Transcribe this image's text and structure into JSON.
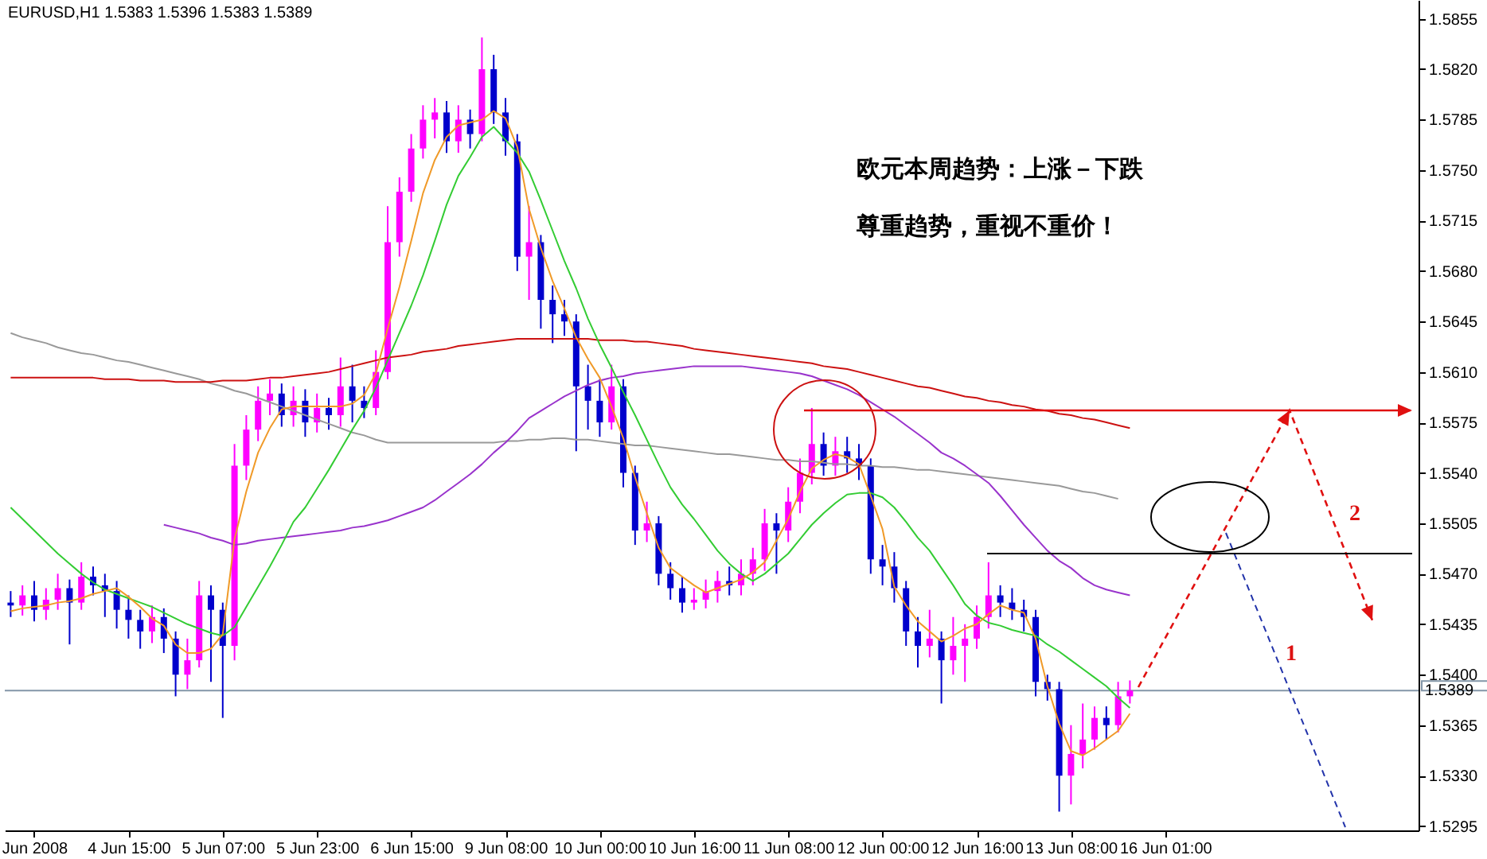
{
  "chart_data": {
    "type": "candlestick",
    "title": "EURUSD,H1  1.5383 1.5396 1.5383 1.5389",
    "categories": [
      null,
      null,
      "Jun 2008",
      null,
      null,
      null,
      null,
      null,
      null,
      null,
      "4 Jun 15:00",
      null,
      null,
      null,
      null,
      null,
      null,
      null,
      "5 Jun 07:00",
      null,
      null,
      null,
      null,
      null,
      null,
      null,
      "5 Jun 23:00",
      null,
      null,
      null,
      null,
      null,
      null,
      null,
      "6 Jun 15:00",
      null,
      null,
      null,
      null,
      null,
      null,
      null,
      "9 Jun 08:00",
      null,
      null,
      null,
      null,
      null,
      null,
      null,
      "10 Jun 00:00",
      null,
      null,
      null,
      null,
      null,
      null,
      null,
      "10 Jun 16:00",
      null,
      null,
      null,
      null,
      null,
      null,
      null,
      "11 Jun 08:00",
      null,
      null,
      null,
      null,
      null,
      null,
      null,
      "12 Jun 00:00",
      null,
      null,
      null,
      null,
      null,
      null,
      null,
      "12 Jun 16:00",
      null,
      null,
      null,
      null,
      null,
      null,
      null,
      "13 Jun 08:00",
      null,
      null,
      null,
      null,
      null,
      null,
      null,
      "16 Jun 01:00",
      null,
      null,
      null,
      null,
      null,
      null,
      null,
      null,
      null,
      null,
      null,
      null,
      null,
      null,
      null,
      null,
      null,
      null,
      null,
      null,
      null
    ],
    "ylim": [
      1.5292,
      1.5868
    ],
    "yticks": [
      1.5855,
      {
        "value": 1.582,
        "label": "1.5820"
      },
      1.5785,
      {
        "value": 1.575,
        "label": "1.5750"
      },
      1.5715,
      {
        "value": 1.568,
        "label": "1.5680"
      },
      1.5645,
      {
        "value": 1.561,
        "label": "1.5610"
      },
      1.5575,
      {
        "value": 1.554,
        "label": "1.5540"
      },
      1.5505,
      {
        "value": 1.547,
        "label": "1.5470"
      },
      1.5435,
      {
        "value": 1.54,
        "label": "1.5400"
      },
      1.5365,
      {
        "value": 1.533,
        "label": "1.5330"
      },
      1.5295
    ],
    "series": [
      {
        "type": "line",
        "color": "#999999",
        "values": [
          1.5637,
          1.5634,
          1.5632,
          1.563,
          1.5627,
          1.5625,
          1.5623,
          1.5622,
          1.562,
          1.5618,
          1.5617,
          1.5615,
          1.5613,
          1.5611,
          1.5609,
          1.5607,
          1.5605,
          1.5602,
          1.56,
          1.5597,
          1.5595,
          1.5592,
          1.5589,
          1.5586,
          1.5583,
          1.558,
          1.5577,
          1.5574,
          1.5571,
          1.5568,
          1.5566,
          1.5563,
          1.5561,
          1.5561,
          1.5561,
          1.5561,
          1.5561,
          1.5561,
          1.5561,
          1.5561,
          1.5561,
          1.5561,
          1.5562,
          1.5562,
          1.5563,
          1.5563,
          1.5564,
          1.5564,
          1.5563,
          1.5563,
          1.5562,
          1.5561,
          1.556,
          1.5559,
          1.5559,
          1.5558,
          1.5557,
          1.5556,
          1.5555,
          1.5554,
          1.5553,
          1.5553,
          1.5552,
          1.5551,
          1.555,
          1.5549,
          1.5549,
          1.5548,
          1.5548,
          1.5547,
          1.5546,
          1.5546,
          1.5545,
          1.5545,
          1.5544,
          1.5544,
          1.5543,
          1.5542,
          1.5542,
          1.5541,
          1.554,
          1.5539,
          1.5538,
          1.5537,
          1.5536,
          1.5535,
          1.5534,
          1.5533,
          1.5532,
          1.5531,
          1.5529,
          1.5527,
          1.5526,
          1.5524,
          1.5522,
          null,
          null,
          null,
          null,
          null,
          null,
          null,
          null,
          null,
          null,
          null,
          null,
          null,
          null,
          null,
          null,
          null,
          null,
          null,
          null,
          null,
          null,
          null,
          null,
          null
        ]
      },
      {
        "type": "line",
        "color": "#cc1111",
        "values": [
          1.5606,
          1.5606,
          1.5606,
          1.5606,
          1.5606,
          1.5606,
          1.5606,
          1.5606,
          1.5605,
          1.5605,
          1.5605,
          1.5604,
          1.5604,
          1.5604,
          1.5603,
          1.5603,
          1.5603,
          1.5603,
          1.5604,
          1.5604,
          1.5604,
          1.5605,
          1.5606,
          1.5606,
          1.5607,
          1.5608,
          1.5609,
          1.561,
          1.5612,
          1.5614,
          1.5616,
          1.5618,
          1.562,
          1.5621,
          1.5622,
          1.5624,
          1.5625,
          1.5626,
          1.5628,
          1.5629,
          1.563,
          1.5631,
          1.5632,
          1.5633,
          1.5633,
          1.5633,
          1.5633,
          1.5633,
          1.5633,
          1.5633,
          1.5632,
          1.5632,
          1.5632,
          1.5631,
          1.5631,
          1.563,
          1.5629,
          1.5628,
          1.5626,
          1.5625,
          1.5624,
          1.5623,
          1.5622,
          1.5621,
          1.562,
          1.5619,
          1.5618,
          1.5617,
          1.5616,
          1.5614,
          1.5613,
          1.5612,
          1.561,
          1.5608,
          1.5606,
          1.5604,
          1.5602,
          1.56,
          1.5599,
          1.5597,
          1.5595,
          1.5593,
          1.5592,
          1.559,
          1.5589,
          1.5587,
          1.5586,
          1.5584,
          1.5583,
          1.5581,
          1.558,
          1.5578,
          1.5577,
          1.5575,
          1.5573,
          1.5571,
          null,
          null,
          null,
          null,
          null,
          null,
          null,
          null,
          null,
          null,
          null,
          null,
          null,
          null,
          null,
          null,
          null,
          null,
          null,
          null,
          null,
          null,
          null,
          null
        ]
      },
      {
        "type": "line",
        "color": "#9933cc",
        "values": [
          null,
          null,
          null,
          null,
          null,
          null,
          null,
          null,
          null,
          null,
          null,
          null,
          null,
          1.5504,
          1.5502,
          1.55,
          1.5498,
          1.5495,
          1.5493,
          1.549,
          1.5491,
          1.5493,
          1.5494,
          1.5495,
          1.5496,
          1.5497,
          1.5498,
          1.5499,
          1.55,
          1.5502,
          1.5503,
          1.5505,
          1.5507,
          1.551,
          1.5513,
          1.5516,
          1.5521,
          1.5527,
          1.5533,
          1.5539,
          1.5546,
          1.5554,
          1.5561,
          1.5569,
          1.5578,
          1.5583,
          1.5588,
          1.5593,
          1.5597,
          1.5601,
          1.5604,
          1.5606,
          1.5607,
          1.5609,
          1.561,
          1.5611,
          1.5612,
          1.5613,
          1.5614,
          1.5614,
          1.5614,
          1.5614,
          1.5614,
          1.5613,
          1.5612,
          1.5611,
          1.561,
          1.5609,
          1.5607,
          1.5604,
          1.5601,
          1.5598,
          1.5594,
          1.5589,
          1.5584,
          1.5579,
          1.5573,
          1.5567,
          1.5561,
          1.5554,
          1.555,
          1.5545,
          1.5539,
          1.5533,
          1.5524,
          1.5514,
          1.5504,
          1.5495,
          1.5486,
          1.5479,
          1.5474,
          1.5467,
          1.5462,
          1.5459,
          1.5457,
          1.5455,
          null,
          null,
          null,
          null,
          null,
          null,
          null,
          null,
          null,
          null,
          null,
          null,
          null,
          null,
          null,
          null,
          null,
          null,
          null,
          null,
          null,
          null,
          null,
          null
        ]
      },
      {
        "type": "line",
        "color": "#33cc33",
        "values": [
          1.5516,
          1.5508,
          1.55,
          1.5492,
          1.5484,
          1.5477,
          1.547,
          1.5464,
          1.5459,
          1.5456,
          1.5453,
          1.545,
          1.5447,
          1.5443,
          1.5439,
          1.5435,
          1.5432,
          1.5429,
          1.5427,
          1.5433,
          1.5447,
          1.5461,
          1.5475,
          1.549,
          1.5506,
          1.5516,
          1.5529,
          1.5542,
          1.5556,
          1.557,
          1.5583,
          1.5599,
          1.5618,
          1.5637,
          1.5656,
          1.5677,
          1.5701,
          1.5726,
          1.5746,
          1.5759,
          1.5773,
          1.578,
          1.5771,
          1.5762,
          1.5749,
          1.5729,
          1.5708,
          1.5687,
          1.5668,
          1.5647,
          1.5629,
          1.5613,
          1.5596,
          1.558,
          1.5563,
          1.5546,
          1.553,
          1.5518,
          1.5508,
          1.5497,
          1.5486,
          1.5477,
          1.547,
          1.5465,
          1.547,
          1.5477,
          1.5484,
          1.5494,
          1.5504,
          1.5512,
          1.5519,
          1.5525,
          1.5526,
          1.5526,
          1.5523,
          1.5516,
          1.5506,
          1.5495,
          1.5486,
          1.5474,
          1.5462,
          1.5449,
          1.5441,
          1.5436,
          1.5434,
          1.5431,
          1.5429,
          1.5427,
          1.5421,
          1.5416,
          1.541,
          1.5404,
          1.5398,
          1.5392,
          1.5384,
          1.5377,
          null,
          null,
          null,
          null,
          null,
          null,
          null,
          null,
          null,
          null,
          null,
          null,
          null,
          null,
          null,
          null,
          null,
          null,
          null,
          null,
          null,
          null,
          null,
          null
        ]
      },
      {
        "type": "line",
        "color": "#f09a28",
        "values": [
          1.5444,
          1.5446,
          1.5447,
          1.5448,
          1.545,
          1.5451,
          1.5453,
          1.5456,
          1.5458,
          1.546,
          1.5454,
          1.5447,
          1.5439,
          1.5434,
          1.5421,
          1.5415,
          1.5415,
          1.5418,
          1.5428,
          1.5494,
          1.5527,
          1.5554,
          1.5571,
          1.5584,
          1.5586,
          1.5586,
          1.5586,
          1.5586,
          1.5586,
          1.5588,
          1.5594,
          1.5609,
          1.564,
          1.5669,
          1.5701,
          1.5734,
          1.5757,
          1.5773,
          1.5781,
          1.5783,
          1.5785,
          1.5791,
          1.5786,
          1.5766,
          1.5723,
          1.5696,
          1.5673,
          1.5654,
          1.5634,
          1.5619,
          1.5606,
          1.5586,
          1.5564,
          1.5537,
          1.5512,
          1.5488,
          1.5474,
          1.5468,
          1.5462,
          1.5457,
          1.546,
          1.5463,
          1.5466,
          1.5471,
          1.5478,
          1.5493,
          1.5508,
          1.5527,
          1.5543,
          1.5549,
          1.5553,
          1.5551,
          1.5546,
          1.5524,
          1.5501,
          1.5461,
          1.5448,
          1.5437,
          1.543,
          1.5423,
          1.5427,
          1.5432,
          1.5435,
          1.5442,
          1.5448,
          1.5445,
          1.5443,
          1.5425,
          1.5392,
          1.5366,
          1.5347,
          1.5344,
          1.5349,
          1.5355,
          1.5361,
          1.5373,
          null,
          null,
          null,
          null,
          null,
          null,
          null,
          null,
          null,
          null,
          null,
          null,
          null,
          null,
          null,
          null,
          null,
          null,
          null,
          null,
          null,
          null,
          null,
          null
        ]
      },
      {
        "color": "#ff00ff",
        "ohlc": [
          null,
          [
            1.5448,
            1.5462,
            1.5441,
            1.5455
          ],
          null,
          [
            1.5445,
            1.546,
            1.5438,
            1.5452
          ],
          [
            1.5452,
            1.547,
            1.5445,
            1.546
          ],
          null,
          [
            1.545,
            1.5478,
            1.5445,
            1.5468
          ],
          null,
          null,
          null,
          null,
          null,
          [
            1.543,
            1.5448,
            1.5422,
            1.544
          ],
          null,
          null,
          [
            1.54,
            1.5425,
            1.539,
            1.541
          ],
          [
            1.541,
            1.5465,
            1.5405,
            1.5455
          ],
          null,
          null,
          [
            1.542,
            1.556,
            1.541,
            1.5545
          ],
          [
            1.5545,
            1.558,
            1.5535,
            1.557
          ],
          [
            1.557,
            1.56,
            1.5562,
            1.559
          ],
          [
            1.559,
            1.5605,
            1.558,
            1.5595
          ],
          null,
          [
            1.558,
            1.56,
            1.5572,
            1.559
          ],
          null,
          [
            1.5575,
            1.5595,
            1.5568,
            1.5585
          ],
          null,
          [
            1.558,
            1.562,
            1.5572,
            1.56
          ],
          null,
          null,
          [
            1.5585,
            1.5625,
            1.558,
            1.561
          ],
          [
            1.561,
            1.5725,
            1.5605,
            1.57
          ],
          [
            1.57,
            1.5745,
            1.569,
            1.5735
          ],
          [
            1.5735,
            1.5775,
            1.5728,
            1.5765
          ],
          [
            1.5765,
            1.5795,
            1.5758,
            1.5785
          ],
          [
            1.5785,
            1.58,
            1.5772,
            1.579
          ],
          null,
          [
            1.577,
            1.5795,
            1.5762,
            1.5785
          ],
          null,
          [
            1.5775,
            1.5842,
            1.577,
            1.582
          ],
          null,
          null,
          null,
          [
            1.569,
            1.5725,
            1.566,
            1.57
          ],
          null,
          null,
          null,
          null,
          null,
          null,
          [
            1.5575,
            1.5615,
            1.557,
            1.56
          ],
          null,
          null,
          [
            1.55,
            1.552,
            1.5492,
            1.5505
          ],
          null,
          null,
          null,
          [
            1.545,
            1.546,
            1.5445,
            1.5452
          ],
          [
            1.5452,
            1.5466,
            1.5446,
            1.5458
          ],
          [
            1.5458,
            1.5472,
            1.545,
            1.5465
          ],
          null,
          [
            1.5462,
            1.548,
            1.5455,
            1.547
          ],
          [
            1.547,
            1.5488,
            1.5462,
            1.548
          ],
          [
            1.548,
            1.5515,
            1.5472,
            1.5505
          ],
          null,
          [
            1.55,
            1.553,
            1.5492,
            1.552
          ],
          [
            1.552,
            1.555,
            1.5512,
            1.554
          ],
          [
            1.554,
            1.5585,
            1.5532,
            1.556
          ],
          null,
          [
            1.5545,
            1.5565,
            1.5538,
            1.5555
          ],
          null,
          null,
          null,
          null,
          null,
          null,
          null,
          [
            1.542,
            1.5445,
            1.5412,
            1.5425
          ],
          null,
          [
            1.541,
            1.544,
            1.54,
            1.542
          ],
          [
            1.542,
            1.5435,
            1.5395,
            1.5425
          ],
          [
            1.5425,
            1.5448,
            1.5418,
            1.544
          ],
          [
            1.544,
            1.5478,
            1.5432,
            1.5455
          ],
          null,
          null,
          null,
          null,
          null,
          null,
          [
            1.533,
            1.5365,
            1.531,
            1.5345
          ],
          [
            1.5345,
            1.538,
            1.5335,
            1.5355
          ],
          [
            1.5355,
            1.5378,
            1.5348,
            1.537
          ],
          null,
          [
            1.5365,
            1.5395,
            1.536,
            1.5385
          ],
          [
            1.5385,
            1.5396,
            1.538,
            1.5389
          ],
          null,
          null,
          null,
          null,
          null,
          null,
          null,
          null,
          null,
          null,
          null,
          null,
          null,
          null,
          null,
          null,
          null,
          null,
          null,
          null,
          null,
          null,
          null,
          null
        ]
      },
      {
        "color": "#0000cc",
        "ohlc": [
          [
            1.545,
            1.5458,
            1.544,
            1.5448
          ],
          null,
          [
            1.5455,
            1.5465,
            1.5437,
            1.5445
          ],
          null,
          null,
          [
            1.546,
            1.5466,
            1.5421,
            1.545
          ],
          null,
          [
            1.5468,
            1.5475,
            1.5455,
            1.5462
          ],
          [
            1.5462,
            1.547,
            1.544,
            1.5458
          ],
          [
            1.5458,
            1.5465,
            1.5432,
            1.5445
          ],
          [
            1.5445,
            1.5455,
            1.5425,
            1.5438
          ],
          [
            1.5438,
            1.5445,
            1.5418,
            1.543
          ],
          null,
          [
            1.544,
            1.5446,
            1.5415,
            1.5425
          ],
          [
            1.5425,
            1.543,
            1.5385,
            1.54
          ],
          null,
          null,
          [
            1.5455,
            1.5462,
            1.5395,
            1.5445
          ],
          [
            1.5445,
            1.545,
            1.537,
            1.542
          ],
          null,
          null,
          null,
          null,
          [
            1.5595,
            1.5602,
            1.5572,
            1.558
          ],
          null,
          [
            1.559,
            1.5598,
            1.5565,
            1.5575
          ],
          null,
          [
            1.5585,
            1.5592,
            1.557,
            1.558
          ],
          null,
          [
            1.56,
            1.5615,
            1.5575,
            1.559
          ],
          [
            1.559,
            1.56,
            1.5578,
            1.5585
          ],
          null,
          null,
          null,
          null,
          null,
          null,
          [
            1.579,
            1.5798,
            1.5762,
            1.577
          ],
          null,
          [
            1.5785,
            1.5792,
            1.5765,
            1.5775
          ],
          null,
          [
            1.582,
            1.583,
            1.5782,
            1.579
          ],
          [
            1.579,
            1.58,
            1.576,
            1.577
          ],
          [
            1.577,
            1.5775,
            1.568,
            1.569
          ],
          null,
          [
            1.57,
            1.5705,
            1.564,
            1.566
          ],
          [
            1.566,
            1.567,
            1.563,
            1.565
          ],
          [
            1.565,
            1.566,
            1.5635,
            1.5645
          ],
          [
            1.5645,
            1.565,
            1.5555,
            1.56
          ],
          [
            1.56,
            1.5615,
            1.557,
            1.559
          ],
          [
            1.559,
            1.5605,
            1.5565,
            1.5575
          ],
          null,
          [
            1.56,
            1.5605,
            1.553,
            1.554
          ],
          [
            1.554,
            1.5545,
            1.549,
            1.55
          ],
          null,
          [
            1.5505,
            1.551,
            1.5462,
            1.547
          ],
          [
            1.547,
            1.5478,
            1.5452,
            1.546
          ],
          [
            1.546,
            1.5468,
            1.5443,
            1.545
          ],
          null,
          null,
          null,
          [
            1.5465,
            1.5475,
            1.5455,
            1.5462
          ],
          null,
          null,
          null,
          [
            1.5505,
            1.5512,
            1.547,
            1.55
          ],
          null,
          null,
          null,
          [
            1.556,
            1.5568,
            1.5538,
            1.5545
          ],
          null,
          [
            1.5555,
            1.5565,
            1.554,
            1.555
          ],
          [
            1.555,
            1.556,
            1.5535,
            1.5545
          ],
          [
            1.5545,
            1.555,
            1.547,
            1.548
          ],
          [
            1.548,
            1.549,
            1.5462,
            1.5475
          ],
          [
            1.5475,
            1.5485,
            1.545,
            1.546
          ],
          [
            1.546,
            1.5465,
            1.542,
            1.543
          ],
          [
            1.543,
            1.544,
            1.5405,
            1.542
          ],
          null,
          [
            1.5425,
            1.543,
            1.538,
            1.541
          ],
          null,
          null,
          null,
          null,
          [
            1.5455,
            1.5462,
            1.544,
            1.545
          ],
          [
            1.545,
            1.546,
            1.5438,
            1.5445
          ],
          [
            1.5445,
            1.5452,
            1.543,
            1.544
          ],
          [
            1.544,
            1.5445,
            1.5385,
            1.5395
          ],
          [
            1.5395,
            1.54,
            1.5382,
            1.539
          ],
          [
            1.539,
            1.5395,
            1.5305,
            1.533
          ],
          null,
          null,
          null,
          [
            1.537,
            1.5378,
            1.5355,
            1.5365
          ],
          null,
          null,
          null,
          null,
          null,
          null,
          null,
          null,
          null,
          null,
          null,
          null,
          null,
          null,
          null,
          null,
          null,
          null,
          null,
          null,
          null,
          null,
          null,
          null,
          null,
          null
        ]
      }
    ],
    "ref_lines": [
      {
        "axis": "y",
        "value": 1.5389,
        "label": "1.5389",
        "color": "#8396a8"
      }
    ],
    "annotations": [
      "欧元本周趋势：上涨－下跌",
      "尊重趋势，重视不重价！",
      "1",
      "2"
    ]
  }
}
